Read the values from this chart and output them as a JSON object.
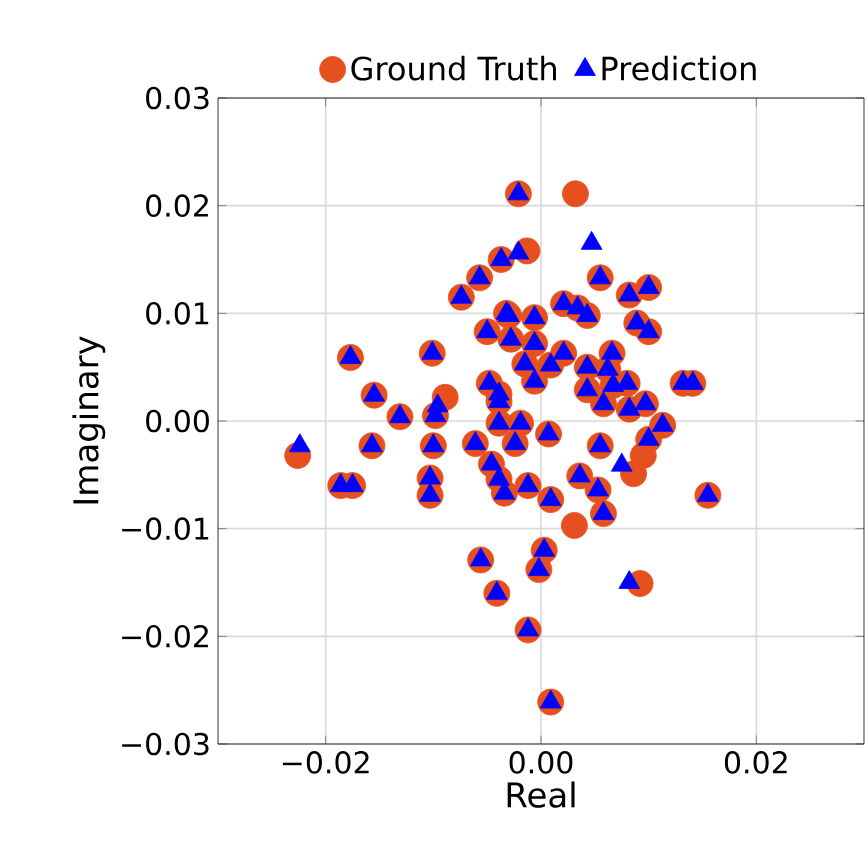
{
  "chart_data": {
    "type": "scatter",
    "xlabel": "Real",
    "ylabel": "Imaginary",
    "xlim": [
      -0.03,
      0.03
    ],
    "ylim": [
      -0.03,
      0.03
    ],
    "xticks": [
      {
        "value": -0.02,
        "label": "−0.02"
      },
      {
        "value": 0,
        "label": "0.00"
      },
      {
        "value": 0.02,
        "label": "0.02"
      }
    ],
    "yticks": [
      {
        "value": -0.03,
        "label": "−0.03"
      },
      {
        "value": -0.02,
        "label": "−0.02"
      },
      {
        "value": -0.01,
        "label": "−0.01"
      },
      {
        "value": 0,
        "label": "0.00"
      },
      {
        "value": 0.01,
        "label": "0.01"
      },
      {
        "value": 0.02,
        "label": "0.02"
      },
      {
        "value": 0.03,
        "label": "0.03"
      }
    ],
    "grid": true,
    "legend": "top",
    "series": [
      {
        "name": "Ground Truth",
        "color": "#e6501e",
        "marker": "circle",
        "x": [
          -0.0021,
          0.0032,
          -0.0013,
          -0.0037,
          -0.0057,
          -0.0074,
          -0.0032,
          -0.005,
          -0.0028,
          -0.0177,
          -0.0101,
          -0.0089,
          -0.0155,
          -0.0131,
          -0.0098,
          -0.0048,
          -0.0039,
          0.0055,
          0.0082,
          0.01,
          0.0021,
          0.0034,
          0.0043,
          -0.003,
          -0.0006,
          0.0089,
          0.01,
          -0.0006,
          0.0021,
          -0.0015,
          0.0009,
          -0.0006,
          0.0043,
          0.0066,
          0.0062,
          0.008,
          0.0043,
          0.0067,
          0.0097,
          0.0082,
          0.0058,
          0.0132,
          0.0141,
          -0.0039,
          -0.0226,
          -0.0186,
          -0.0175,
          -0.0157,
          -0.01,
          -0.0103,
          -0.0103,
          -0.0061,
          -0.0046,
          -0.0039,
          -0.0024,
          -0.0019,
          -0.0039,
          -0.0034,
          -0.0012,
          -0.0056,
          -0.0041,
          -0.0012,
          0.0055,
          0.0036,
          0.0053,
          0.0058,
          0.0009,
          0.0031,
          0.0003,
          -0.0002,
          0.0092,
          0.0155,
          0.0009,
          0.0007,
          0.0113,
          0.01,
          0.0095,
          0.0086
        ],
        "values": [
          0.0211,
          0.0211,
          0.0158,
          0.015,
          0.0133,
          0.0115,
          0.01,
          0.0083,
          0.0076,
          0.0059,
          0.0063,
          0.0022,
          0.0024,
          0.0004,
          0.0005,
          0.0035,
          0.0018,
          0.0133,
          0.0117,
          0.0124,
          0.0109,
          0.0105,
          0.0098,
          0.0098,
          0.0096,
          0.0091,
          0.0083,
          0.0072,
          0.0063,
          0.0053,
          0.0052,
          0.0037,
          0.005,
          0.0063,
          0.0048,
          0.0035,
          0.0029,
          0.0033,
          0.0016,
          0.0011,
          0.0016,
          0.0035,
          0.0035,
          0.0025,
          -0.0032,
          -0.006,
          -0.006,
          -0.0023,
          -0.0023,
          -0.0053,
          -0.0069,
          -0.0021,
          -0.004,
          -0.0002,
          -0.0021,
          -0.0002,
          -0.0054,
          -0.0067,
          -0.006,
          -0.0129,
          -0.016,
          -0.0194,
          -0.0023,
          -0.0051,
          -0.0064,
          -0.0086,
          -0.0073,
          -0.0097,
          -0.012,
          -0.0138,
          -0.0151,
          -0.0069,
          -0.0261,
          -0.0012,
          -0.0004,
          -0.0017,
          -0.0032,
          -0.0049
        ]
      },
      {
        "name": "Prediction",
        "color": "#0000ff",
        "marker": "triangle",
        "x": [
          -0.0021,
          0.0047,
          -0.0021,
          -0.0037,
          -0.0057,
          -0.0074,
          -0.0032,
          -0.005,
          -0.0028,
          -0.0177,
          -0.0101,
          -0.0096,
          -0.0155,
          -0.0131,
          -0.0098,
          -0.0048,
          -0.0039,
          0.0055,
          0.0082,
          0.01,
          0.0021,
          0.0034,
          0.0043,
          -0.003,
          -0.0006,
          0.0089,
          0.01,
          -0.0006,
          0.0021,
          -0.0015,
          0.0009,
          -0.0006,
          0.0043,
          0.0066,
          0.0062,
          0.008,
          0.0043,
          0.0067,
          0.0097,
          0.0082,
          0.0058,
          0.0132,
          0.0141,
          -0.0039,
          -0.0224,
          -0.0186,
          -0.0175,
          -0.0157,
          -0.01,
          -0.0103,
          -0.0103,
          -0.0061,
          -0.0046,
          -0.0039,
          -0.0024,
          -0.0019,
          -0.0039,
          -0.0034,
          -0.0012,
          -0.0056,
          -0.0041,
          -0.0012,
          0.0055,
          0.0036,
          0.0053,
          0.0058,
          0.0009,
          0.0003,
          -0.0002,
          0.0082,
          0.0155,
          0.0009,
          0.0007,
          0.0113,
          0.01,
          0.0075
        ],
        "values": [
          0.0211,
          0.0165,
          0.0156,
          0.015,
          0.0133,
          0.0115,
          0.01,
          0.0083,
          0.0076,
          0.0059,
          0.0063,
          0.0014,
          0.0024,
          0.0004,
          0.0005,
          0.0035,
          0.0018,
          0.0133,
          0.0117,
          0.0124,
          0.0109,
          0.0105,
          0.0098,
          0.0098,
          0.0096,
          0.0091,
          0.0083,
          0.0072,
          0.0063,
          0.0053,
          0.0052,
          0.0037,
          0.005,
          0.0063,
          0.0048,
          0.0035,
          0.0029,
          0.0033,
          0.0016,
          0.0011,
          0.0016,
          0.0035,
          0.0035,
          0.0025,
          -0.0023,
          -0.006,
          -0.006,
          -0.0023,
          -0.0023,
          -0.0053,
          -0.0069,
          -0.0021,
          -0.004,
          -0.0002,
          -0.0021,
          -0.0002,
          -0.0054,
          -0.0067,
          -0.006,
          -0.0129,
          -0.016,
          -0.0194,
          -0.0023,
          -0.0051,
          -0.0064,
          -0.0086,
          -0.0073,
          -0.012,
          -0.0138,
          -0.015,
          -0.0069,
          -0.0261,
          -0.0012,
          -0.0004,
          -0.0017,
          -0.0041
        ]
      }
    ]
  }
}
